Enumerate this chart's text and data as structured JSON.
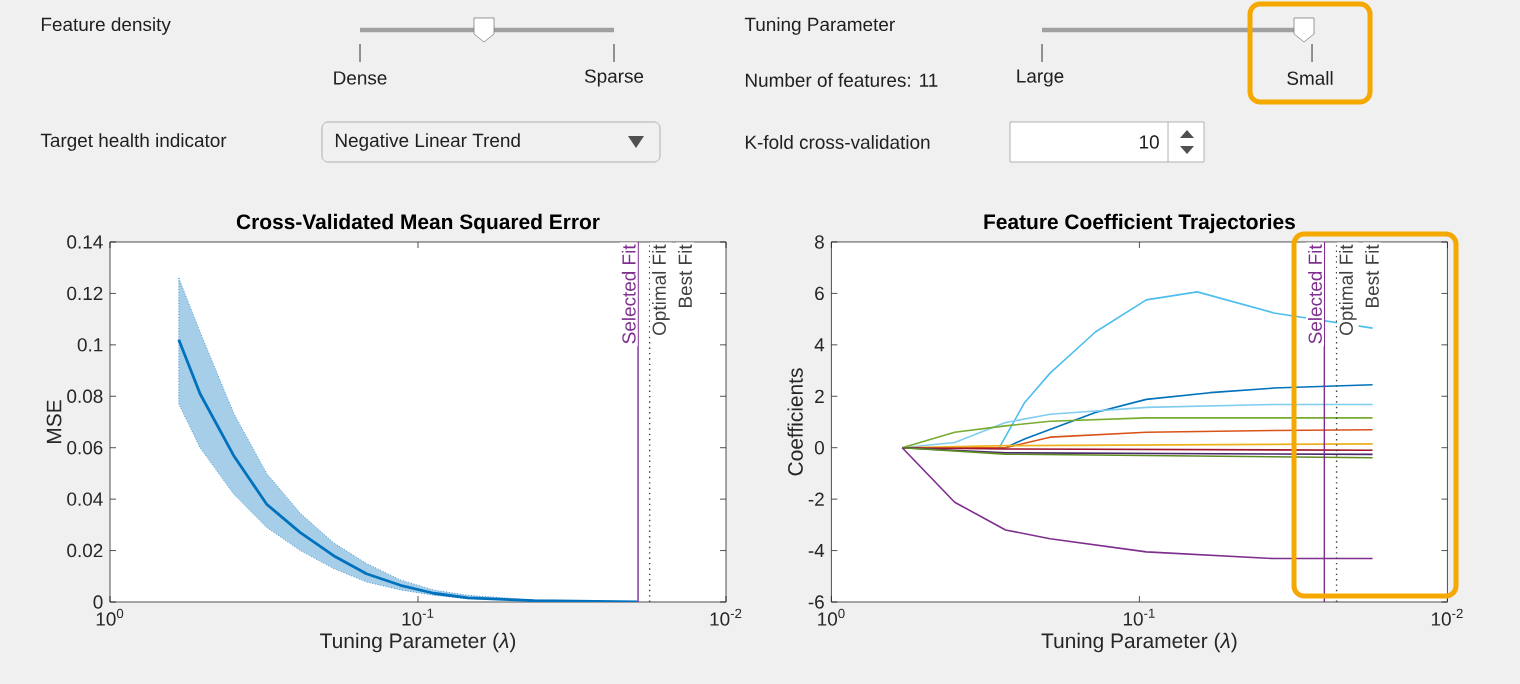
{
  "chart_data": [
    {
      "type": "other",
      "annotations": [
        "Feature density",
        "Dense",
        "Sparse",
        "Tuning Parameter",
        "Large",
        "Small",
        "Number of features: 11",
        "Target health indicator",
        "Negative Linear Trend",
        "K-fold cross-validation",
        "10"
      ]
    },
    {
      "type": "line",
      "title": "Cross-Validated Mean Squared Error",
      "xlabel": "Tuning  Parameter  (*λ*)",
      "ylabel": "MSE",
      "log": "x",
      "xlim": [
        1,
        0.01
      ],
      "xticks": [
        {
          "value": 1,
          "label": "10$^{0}$"
        },
        {
          "value": 0.1,
          "label": "10$^{-1}$"
        },
        {
          "value": 0.01,
          "label": "10$^{-2}$"
        }
      ],
      "ylim": [
        0,
        0.14
      ],
      "yticks": [
        0,
        0.02,
        0.04,
        0.06,
        0.08,
        0.1,
        0.12,
        0.14
      ],
      "series": [
        {
          "color": "#0072bd",
          "x": [
            0.598,
            0.51,
            0.397,
            0.31,
            0.241,
            0.188,
            0.147,
            0.114,
            0.089,
            0.069,
            0.042,
            0.0194
          ],
          "values": [
            0.102,
            0.081,
            0.057,
            0.038,
            0.027,
            0.018,
            0.011,
            0.0065,
            0.0034,
            0.0016,
            0.0005,
            0
          ],
          "upper": [
            0.126,
            0.105,
            0.0735,
            0.05,
            0.0345,
            0.023,
            0.015,
            0.0086,
            0.0047,
            0.0026,
            0.0008,
            0
          ],
          "lower": [
            0.077,
            0.06,
            0.042,
            0.029,
            0.02,
            0.013,
            0.0078,
            0.0047,
            0.0026,
            0.0013,
            0.0003,
            0
          ]
        }
      ],
      "ref_lines": [
        {
          "axis": "x",
          "value": 0.0193,
          "label": "Selected Fit",
          "color": "#7e2f8e",
          "line_style": "solid"
        },
        {
          "axis": "x",
          "value": 0.0177,
          "label": "Optimal Fit",
          "color": "#404040",
          "line_style": "dotted"
        }
      ],
      "annotations": [
        {
          "text": "Best Fit",
          "x": 0.0177,
          "y": 0.14
        }
      ]
    },
    {
      "type": "line",
      "title": "Feature Coefficient Trajectories",
      "xlabel": "Tuning  Parameter  (*λ*)",
      "ylabel": "Coefficients",
      "log": "x",
      "xlim": [
        1,
        0.01
      ],
      "xticks": [
        {
          "value": 1,
          "label": "10$^{0}$"
        },
        {
          "value": 0.1,
          "label": "10$^{-1}$"
        },
        {
          "value": 0.01,
          "label": "10$^{-2}$"
        }
      ],
      "ylim": [
        -6,
        8
      ],
      "yticks": [
        -6,
        -4,
        -2,
        0,
        2,
        4,
        6,
        8
      ],
      "series": [
        {
          "color": "#4dbeee",
          "x": [
            0.589,
            0.38,
            0.285,
            0.236,
            0.195,
            0.139,
            0.095,
            0.0649,
            0.0366,
            0.0175
          ],
          "values": [
            0,
            0,
            0,
            1.75,
            2.9,
            4.5,
            5.75,
            6.06,
            5.24,
            4.65
          ]
        },
        {
          "color": "#0072bd",
          "x": [
            0.589,
            0.272,
            0.236,
            0.139,
            0.095,
            0.059,
            0.0366,
            0.0175
          ],
          "values": [
            0,
            0,
            0.34,
            1.37,
            1.88,
            2.14,
            2.32,
            2.45
          ]
        },
        {
          "color": "#80cdf0",
          "x": [
            0.589,
            0.398,
            0.272,
            0.195,
            0.095,
            0.0366,
            0.0175
          ],
          "values": [
            0,
            0.2,
            0.98,
            1.3,
            1.57,
            1.68,
            1.68
          ]
        },
        {
          "color": "#77ac30",
          "x": [
            0.589,
            0.398,
            0.272,
            0.195,
            0.095,
            0.0175
          ],
          "values": [
            0,
            0.6,
            0.85,
            1.03,
            1.16,
            1.16
          ]
        },
        {
          "color": "#d95319",
          "x": [
            0.589,
            0.272,
            0.195,
            0.095,
            0.0366,
            0.0175
          ],
          "values": [
            0,
            0,
            0.41,
            0.6,
            0.67,
            0.7
          ]
        },
        {
          "color": "#edb120",
          "x": [
            0.589,
            0.272,
            0.0175
          ],
          "values": [
            0,
            0.08,
            0.15
          ]
        },
        {
          "color": "#a2142f",
          "x": [
            0.589,
            0.272,
            0.0175
          ],
          "values": [
            0,
            -0.05,
            -0.1
          ]
        },
        {
          "color": "#4b2a6e",
          "x": [
            0.589,
            0.272,
            0.0175
          ],
          "values": [
            0,
            -0.2,
            -0.26
          ]
        },
        {
          "color": "#5e8c22",
          "x": [
            0.589,
            0.272,
            0.0175
          ],
          "values": [
            0,
            -0.25,
            -0.39
          ]
        },
        {
          "color": "#7e2f8e",
          "x": [
            0.589,
            0.398,
            0.272,
            0.195,
            0.095,
            0.0366,
            0.0175
          ],
          "values": [
            0,
            -2.12,
            -3.2,
            -3.54,
            -4.05,
            -4.31,
            -4.31
          ]
        }
      ],
      "ref_lines": [
        {
          "axis": "x",
          "value": 0.0251,
          "label": "Selected Fit",
          "color": "#7e2f8e",
          "line_style": "solid"
        },
        {
          "axis": "x",
          "value": 0.0229,
          "label": "Optimal Fit",
          "color": "#404040",
          "line_style": "dotted"
        }
      ],
      "annotations": [
        {
          "text": "Best Fit",
          "x": 0.0229,
          "y": 8
        }
      ]
    }
  ]
}
